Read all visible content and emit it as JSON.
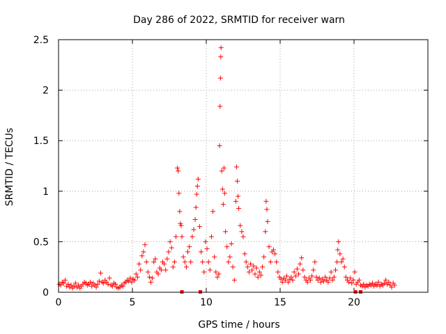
{
  "chart_data": {
    "type": "scatter",
    "title": "Day 286 of 2022, SRMTID for receiver warn",
    "xlabel": "GPS time / hours",
    "ylabel": "SRMTID / TECUs",
    "xlim": [
      0,
      25
    ],
    "ylim": [
      0,
      2.5
    ],
    "xticks": [
      "0",
      "5",
      "10",
      "15",
      "20"
    ],
    "yticks": [
      "0",
      "0.5",
      "1",
      "1.5",
      "2",
      "2.5"
    ],
    "grid": true,
    "series_color": "#ff0000",
    "marker": "plus",
    "markers_at_zero": [
      8.35,
      9.6,
      20.1,
      20.45
    ],
    "series": [
      {
        "values": [
          [
            0.05,
            0.08
          ],
          [
            0.15,
            0.07
          ],
          [
            0.25,
            0.1
          ],
          [
            0.35,
            0.09
          ],
          [
            0.45,
            0.12
          ],
          [
            0.55,
            0.06
          ],
          [
            0.65,
            0.08
          ],
          [
            0.75,
            0.05
          ],
          [
            0.85,
            0.07
          ],
          [
            0.95,
            0.04
          ],
          [
            1.05,
            0.06
          ],
          [
            1.15,
            0.09
          ],
          [
            1.25,
            0.05
          ],
          [
            1.35,
            0.07
          ],
          [
            1.45,
            0.04
          ],
          [
            1.55,
            0.06
          ],
          [
            1.65,
            0.08
          ],
          [
            1.75,
            0.1
          ],
          [
            1.85,
            0.09
          ],
          [
            1.95,
            0.07
          ],
          [
            2.05,
            0.08
          ],
          [
            2.15,
            0.1
          ],
          [
            2.25,
            0.06
          ],
          [
            2.35,
            0.09
          ],
          [
            2.45,
            0.07
          ],
          [
            2.55,
            0.05
          ],
          [
            2.65,
            0.08
          ],
          [
            2.75,
            0.11
          ],
          [
            2.85,
            0.19
          ],
          [
            2.95,
            0.1
          ],
          [
            3.05,
            0.09
          ],
          [
            3.15,
            0.12
          ],
          [
            3.25,
            0.1
          ],
          [
            3.35,
            0.08
          ],
          [
            3.45,
            0.14
          ],
          [
            3.55,
            0.07
          ],
          [
            3.65,
            0.06
          ],
          [
            3.75,
            0.09
          ],
          [
            3.85,
            0.08
          ],
          [
            3.95,
            0.05
          ],
          [
            4.05,
            0.04
          ],
          [
            4.15,
            0.05
          ],
          [
            4.25,
            0.07
          ],
          [
            4.35,
            0.06
          ],
          [
            4.45,
            0.09
          ],
          [
            4.55,
            0.1
          ],
          [
            4.65,
            0.12
          ],
          [
            4.75,
            0.11
          ],
          [
            4.85,
            0.14
          ],
          [
            4.95,
            0.1
          ],
          [
            5.05,
            0.13
          ],
          [
            5.15,
            0.12
          ],
          [
            5.25,
            0.18
          ],
          [
            5.35,
            0.15
          ],
          [
            5.45,
            0.28
          ],
          [
            5.55,
            0.22
          ],
          [
            5.65,
            0.36
          ],
          [
            5.75,
            0.4
          ],
          [
            5.85,
            0.47
          ],
          [
            5.95,
            0.3
          ],
          [
            6.05,
            0.2
          ],
          [
            6.15,
            0.15
          ],
          [
            6.25,
            0.1
          ],
          [
            6.35,
            0.14
          ],
          [
            6.45,
            0.3
          ],
          [
            6.55,
            0.33
          ],
          [
            6.65,
            0.2
          ],
          [
            6.75,
            0.18
          ],
          [
            6.85,
            0.24
          ],
          [
            6.95,
            0.22
          ],
          [
            7.05,
            0.3
          ],
          [
            7.15,
            0.28
          ],
          [
            7.25,
            0.22
          ],
          [
            7.35,
            0.33
          ],
          [
            7.45,
            0.4
          ],
          [
            7.55,
            0.5
          ],
          [
            7.65,
            0.44
          ],
          [
            7.75,
            0.25
          ],
          [
            7.85,
            0.3
          ],
          [
            7.95,
            0.55
          ],
          [
            8.05,
            1.23
          ],
          [
            8.1,
            1.2
          ],
          [
            8.15,
            0.98
          ],
          [
            8.2,
            0.8
          ],
          [
            8.25,
            0.68
          ],
          [
            8.3,
            0.66
          ],
          [
            8.35,
            0.55
          ],
          [
            8.45,
            0.35
          ],
          [
            8.55,
            0.3
          ],
          [
            8.65,
            0.25
          ],
          [
            8.75,
            0.4
          ],
          [
            8.85,
            0.45
          ],
          [
            8.95,
            0.3
          ],
          [
            9.05,
            0.55
          ],
          [
            9.15,
            0.62
          ],
          [
            9.25,
            0.72
          ],
          [
            9.3,
            0.84
          ],
          [
            9.35,
            0.97
          ],
          [
            9.4,
            1.05
          ],
          [
            9.45,
            1.12
          ],
          [
            9.55,
            0.65
          ],
          [
            9.65,
            0.4
          ],
          [
            9.75,
            0.3
          ],
          [
            9.85,
            0.2
          ],
          [
            9.95,
            0.5
          ],
          [
            10.05,
            0.43
          ],
          [
            10.15,
            0.3
          ],
          [
            10.25,
            0.22
          ],
          [
            10.35,
            0.55
          ],
          [
            10.45,
            0.8
          ],
          [
            10.55,
            0.35
          ],
          [
            10.65,
            0.2
          ],
          [
            10.75,
            0.15
          ],
          [
            10.85,
            0.18
          ],
          [
            10.9,
            1.45
          ],
          [
            10.93,
            1.84
          ],
          [
            10.96,
            2.12
          ],
          [
            10.98,
            2.33
          ],
          [
            11.0,
            2.42
          ],
          [
            11.05,
            1.2
          ],
          [
            11.1,
            1.02
          ],
          [
            11.15,
            0.87
          ],
          [
            11.2,
            1.23
          ],
          [
            11.25,
            0.98
          ],
          [
            11.3,
            0.6
          ],
          [
            11.4,
            0.45
          ],
          [
            11.5,
            0.3
          ],
          [
            11.6,
            0.35
          ],
          [
            11.7,
            0.48
          ],
          [
            11.8,
            0.25
          ],
          [
            11.9,
            0.12
          ],
          [
            12.0,
            0.9
          ],
          [
            12.05,
            1.24
          ],
          [
            12.1,
            1.1
          ],
          [
            12.15,
            0.95
          ],
          [
            12.2,
            0.83
          ],
          [
            12.3,
            0.66
          ],
          [
            12.4,
            0.6
          ],
          [
            12.5,
            0.55
          ],
          [
            12.6,
            0.38
          ],
          [
            12.7,
            0.3
          ],
          [
            12.8,
            0.25
          ],
          [
            12.9,
            0.2
          ],
          [
            13.0,
            0.28
          ],
          [
            13.1,
            0.22
          ],
          [
            13.2,
            0.26
          ],
          [
            13.3,
            0.18
          ],
          [
            13.4,
            0.24
          ],
          [
            13.5,
            0.15
          ],
          [
            13.6,
            0.2
          ],
          [
            13.7,
            0.17
          ],
          [
            13.8,
            0.25
          ],
          [
            13.9,
            0.35
          ],
          [
            14.0,
            0.6
          ],
          [
            14.05,
            0.9
          ],
          [
            14.1,
            0.82
          ],
          [
            14.15,
            0.7
          ],
          [
            14.25,
            0.45
          ],
          [
            14.35,
            0.3
          ],
          [
            14.45,
            0.4
          ],
          [
            14.55,
            0.42
          ],
          [
            14.65,
            0.38
          ],
          [
            14.75,
            0.3
          ],
          [
            14.85,
            0.2
          ],
          [
            14.95,
            0.15
          ],
          [
            15.05,
            0.13
          ],
          [
            15.15,
            0.1
          ],
          [
            15.25,
            0.14
          ],
          [
            15.35,
            0.12
          ],
          [
            15.45,
            0.16
          ],
          [
            15.55,
            0.1
          ],
          [
            15.65,
            0.13
          ],
          [
            15.75,
            0.15
          ],
          [
            15.85,
            0.12
          ],
          [
            15.95,
            0.2
          ],
          [
            16.05,
            0.16
          ],
          [
            16.15,
            0.23
          ],
          [
            16.25,
            0.18
          ],
          [
            16.35,
            0.28
          ],
          [
            16.45,
            0.34
          ],
          [
            16.55,
            0.22
          ],
          [
            16.65,
            0.15
          ],
          [
            16.75,
            0.12
          ],
          [
            16.85,
            0.1
          ],
          [
            16.95,
            0.14
          ],
          [
            17.05,
            0.12
          ],
          [
            17.15,
            0.16
          ],
          [
            17.25,
            0.22
          ],
          [
            17.35,
            0.3
          ],
          [
            17.45,
            0.15
          ],
          [
            17.55,
            0.12
          ],
          [
            17.65,
            0.14
          ],
          [
            17.75,
            0.1
          ],
          [
            17.85,
            0.13
          ],
          [
            17.95,
            0.11
          ],
          [
            18.05,
            0.15
          ],
          [
            18.15,
            0.12
          ],
          [
            18.25,
            0.1
          ],
          [
            18.35,
            0.14
          ],
          [
            18.45,
            0.2
          ],
          [
            18.55,
            0.12
          ],
          [
            18.65,
            0.15
          ],
          [
            18.75,
            0.22
          ],
          [
            18.85,
            0.3
          ],
          [
            18.9,
            0.42
          ],
          [
            18.95,
            0.5
          ],
          [
            19.05,
            0.38
          ],
          [
            19.15,
            0.3
          ],
          [
            19.25,
            0.33
          ],
          [
            19.35,
            0.25
          ],
          [
            19.45,
            0.15
          ],
          [
            19.55,
            0.12
          ],
          [
            19.65,
            0.1
          ],
          [
            19.75,
            0.14
          ],
          [
            19.85,
            0.09
          ],
          [
            19.95,
            0.12
          ],
          [
            20.05,
            0.2
          ],
          [
            20.15,
            0.08
          ],
          [
            20.25,
            0.1
          ],
          [
            20.35,
            0.12
          ],
          [
            20.45,
            0.07
          ],
          [
            20.55,
            0.06
          ],
          [
            20.65,
            0.08
          ],
          [
            20.75,
            0.05
          ],
          [
            20.85,
            0.07
          ],
          [
            20.95,
            0.06
          ],
          [
            21.05,
            0.08
          ],
          [
            21.15,
            0.07
          ],
          [
            21.25,
            0.09
          ],
          [
            21.35,
            0.06
          ],
          [
            21.45,
            0.08
          ],
          [
            21.55,
            0.07
          ],
          [
            21.65,
            0.1
          ],
          [
            21.75,
            0.06
          ],
          [
            21.85,
            0.08
          ],
          [
            21.95,
            0.07
          ],
          [
            22.05,
            0.09
          ],
          [
            22.15,
            0.12
          ],
          [
            22.25,
            0.08
          ],
          [
            22.35,
            0.1
          ],
          [
            22.45,
            0.07
          ],
          [
            22.55,
            0.05
          ],
          [
            22.65,
            0.09
          ],
          [
            22.75,
            0.07
          ]
        ]
      }
    ]
  }
}
